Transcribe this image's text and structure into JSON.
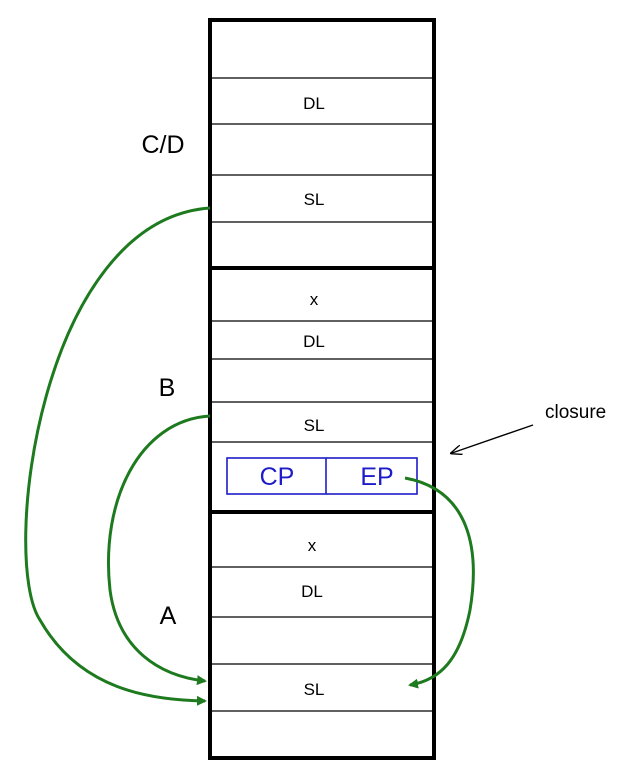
{
  "frames": {
    "cd": {
      "label": "C/D",
      "cells": [
        "",
        "DL",
        "",
        "SL",
        ""
      ]
    },
    "b": {
      "label": "B",
      "cells": [
        "x",
        "DL",
        "",
        "SL"
      ],
      "closure": {
        "cp": "CP",
        "ep": "EP"
      }
    },
    "a": {
      "label": "A",
      "cells": [
        "x",
        "DL",
        "",
        "SL",
        ""
      ]
    }
  },
  "annotation": {
    "closure_label": "closure"
  },
  "colors": {
    "link_arrow": "#1e7a1e",
    "closure_box": "#1c1cc8",
    "frame_border": "#000000"
  }
}
